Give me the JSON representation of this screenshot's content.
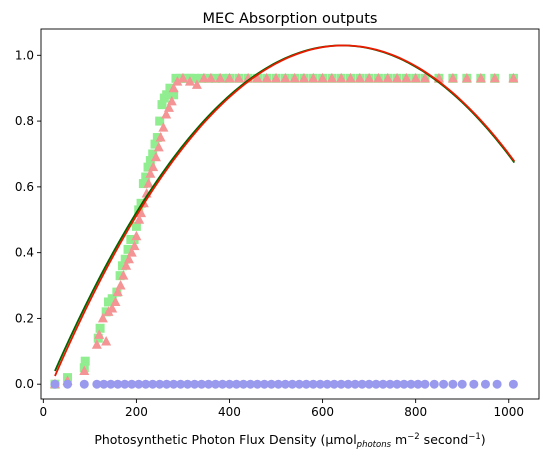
{
  "chart_data": {
    "type": "scatter",
    "title": "MEC Absorption outputs",
    "xlabel": {
      "prefix": "Photosynthetic Photon Flux Density (µmol",
      "sub": "photons",
      "mid1": " m",
      "sup1": "−2",
      "mid2": " second",
      "sup2": "−1",
      "suffix": ")"
    },
    "ylabel": "",
    "xlim": [
      -5,
      1065
    ],
    "ylim": [
      -0.045,
      1.08
    ],
    "xticks": [
      0,
      200,
      400,
      600,
      800,
      1000
    ],
    "xtick_labels": [
      "0",
      "200",
      "400",
      "600",
      "800",
      "1000"
    ],
    "yticks": [
      0.0,
      0.2,
      0.4,
      0.6,
      0.8,
      1.0
    ],
    "ytick_labels": [
      "0.0",
      "0.2",
      "0.4",
      "0.6",
      "0.8",
      "1.0"
    ],
    "grid": false,
    "series": [
      {
        "marker": "square",
        "color": "#90ee90",
        "points": [
          [
            25,
            0.0
          ],
          [
            52,
            0.02
          ],
          [
            88,
            0.05
          ],
          [
            90,
            0.07
          ],
          [
            118,
            0.14
          ],
          [
            122,
            0.17
          ],
          [
            135,
            0.22
          ],
          [
            140,
            0.25
          ],
          [
            148,
            0.26
          ],
          [
            158,
            0.28
          ],
          [
            165,
            0.33
          ],
          [
            170,
            0.36
          ],
          [
            176,
            0.38
          ],
          [
            182,
            0.41
          ],
          [
            188,
            0.44
          ],
          [
            195,
            0.44
          ],
          [
            200,
            0.48
          ],
          [
            205,
            0.53
          ],
          [
            210,
            0.55
          ],
          [
            215,
            0.61
          ],
          [
            220,
            0.63
          ],
          [
            225,
            0.66
          ],
          [
            230,
            0.68
          ],
          [
            235,
            0.7
          ],
          [
            240,
            0.73
          ],
          [
            245,
            0.75
          ],
          [
            250,
            0.8
          ],
          [
            255,
            0.85
          ],
          [
            260,
            0.87
          ],
          [
            265,
            0.88
          ],
          [
            272,
            0.9
          ],
          [
            280,
            0.88
          ],
          [
            285,
            0.93
          ],
          [
            295,
            0.93
          ],
          [
            305,
            0.93
          ],
          [
            315,
            0.93
          ],
          [
            325,
            0.93
          ],
          [
            340,
            0.93
          ],
          [
            355,
            0.93
          ],
          [
            370,
            0.93
          ],
          [
            385,
            0.93
          ],
          [
            400,
            0.93
          ],
          [
            420,
            0.93
          ],
          [
            440,
            0.93
          ],
          [
            460,
            0.93
          ],
          [
            480,
            0.93
          ],
          [
            500,
            0.93
          ],
          [
            520,
            0.93
          ],
          [
            540,
            0.93
          ],
          [
            560,
            0.93
          ],
          [
            580,
            0.93
          ],
          [
            600,
            0.93
          ],
          [
            620,
            0.93
          ],
          [
            640,
            0.93
          ],
          [
            660,
            0.93
          ],
          [
            680,
            0.93
          ],
          [
            700,
            0.93
          ],
          [
            720,
            0.93
          ],
          [
            740,
            0.93
          ],
          [
            760,
            0.93
          ],
          [
            780,
            0.93
          ],
          [
            800,
            0.93
          ],
          [
            820,
            0.93
          ],
          [
            850,
            0.93
          ],
          [
            880,
            0.93
          ],
          [
            910,
            0.93
          ],
          [
            940,
            0.93
          ],
          [
            970,
            0.93
          ],
          [
            1010,
            0.93
          ]
        ]
      },
      {
        "marker": "triangle",
        "color": "#f49494",
        "points": [
          [
            25,
            0.0
          ],
          [
            52,
            0.01
          ],
          [
            88,
            0.04
          ],
          [
            115,
            0.12
          ],
          [
            120,
            0.15
          ],
          [
            128,
            0.2
          ],
          [
            135,
            0.13
          ],
          [
            140,
            0.22
          ],
          [
            148,
            0.23
          ],
          [
            155,
            0.25
          ],
          [
            160,
            0.28
          ],
          [
            166,
            0.3
          ],
          [
            172,
            0.33
          ],
          [
            178,
            0.36
          ],
          [
            184,
            0.38
          ],
          [
            190,
            0.4
          ],
          [
            196,
            0.42
          ],
          [
            200,
            0.45
          ],
          [
            206,
            0.5
          ],
          [
            210,
            0.52
          ],
          [
            216,
            0.55
          ],
          [
            222,
            0.58
          ],
          [
            226,
            0.61
          ],
          [
            230,
            0.64
          ],
          [
            236,
            0.66
          ],
          [
            242,
            0.69
          ],
          [
            248,
            0.72
          ],
          [
            252,
            0.75
          ],
          [
            258,
            0.78
          ],
          [
            264,
            0.82
          ],
          [
            270,
            0.84
          ],
          [
            276,
            0.86
          ],
          [
            280,
            0.9
          ],
          [
            288,
            0.92
          ],
          [
            300,
            0.93
          ],
          [
            315,
            0.92
          ],
          [
            330,
            0.91
          ],
          [
            345,
            0.93
          ],
          [
            360,
            0.93
          ],
          [
            380,
            0.93
          ],
          [
            400,
            0.93
          ],
          [
            420,
            0.93
          ],
          [
            440,
            0.93
          ],
          [
            460,
            0.93
          ],
          [
            480,
            0.93
          ],
          [
            500,
            0.93
          ],
          [
            520,
            0.93
          ],
          [
            540,
            0.93
          ],
          [
            560,
            0.93
          ],
          [
            580,
            0.93
          ],
          [
            600,
            0.93
          ],
          [
            620,
            0.93
          ],
          [
            640,
            0.93
          ],
          [
            660,
            0.93
          ],
          [
            680,
            0.93
          ],
          [
            700,
            0.93
          ],
          [
            720,
            0.93
          ],
          [
            740,
            0.93
          ],
          [
            760,
            0.93
          ],
          [
            780,
            0.93
          ],
          [
            800,
            0.93
          ],
          [
            820,
            0.93
          ],
          [
            850,
            0.93
          ],
          [
            880,
            0.93
          ],
          [
            910,
            0.93
          ],
          [
            940,
            0.93
          ],
          [
            970,
            0.93
          ],
          [
            1010,
            0.93
          ]
        ]
      },
      {
        "marker": "circle",
        "color": "#9999ee",
        "points": [
          [
            25,
            0.0
          ],
          [
            52,
            0.0
          ],
          [
            88,
            0.0
          ],
          [
            115,
            0.0
          ],
          [
            130,
            0.0
          ],
          [
            145,
            0.0
          ],
          [
            160,
            0.0
          ],
          [
            175,
            0.0
          ],
          [
            190,
            0.0
          ],
          [
            205,
            0.0
          ],
          [
            220,
            0.0
          ],
          [
            235,
            0.0
          ],
          [
            250,
            0.0
          ],
          [
            265,
            0.0
          ],
          [
            280,
            0.0
          ],
          [
            295,
            0.0
          ],
          [
            310,
            0.0
          ],
          [
            325,
            0.0
          ],
          [
            340,
            0.0
          ],
          [
            355,
            0.0
          ],
          [
            370,
            0.0
          ],
          [
            385,
            0.0
          ],
          [
            400,
            0.0
          ],
          [
            415,
            0.0
          ],
          [
            430,
            0.0
          ],
          [
            445,
            0.0
          ],
          [
            460,
            0.0
          ],
          [
            475,
            0.0
          ],
          [
            490,
            0.0
          ],
          [
            505,
            0.0
          ],
          [
            520,
            0.0
          ],
          [
            535,
            0.0
          ],
          [
            550,
            0.0
          ],
          [
            565,
            0.0
          ],
          [
            580,
            0.0
          ],
          [
            595,
            0.0
          ],
          [
            610,
            0.0
          ],
          [
            625,
            0.0
          ],
          [
            640,
            0.0
          ],
          [
            655,
            0.0
          ],
          [
            670,
            0.0
          ],
          [
            685,
            0.0
          ],
          [
            700,
            0.0
          ],
          [
            715,
            0.0
          ],
          [
            730,
            0.0
          ],
          [
            745,
            0.0
          ],
          [
            760,
            0.0
          ],
          [
            775,
            0.0
          ],
          [
            790,
            0.0
          ],
          [
            805,
            0.0
          ],
          [
            820,
            0.0
          ],
          [
            840,
            0.0
          ],
          [
            860,
            0.0
          ],
          [
            880,
            0.0
          ],
          [
            900,
            0.0
          ],
          [
            925,
            0.0
          ],
          [
            950,
            0.0
          ],
          [
            975,
            0.0
          ],
          [
            1010,
            0.0
          ]
        ]
      },
      {
        "type": "line",
        "color": "#006400",
        "quadratic": {
          "x0": 25,
          "y0": 0.04,
          "vertex_x": 642,
          "vertex_y": 1.03
        },
        "x_range": [
          25,
          1012
        ]
      },
      {
        "type": "line",
        "color": "#e81a00",
        "quadratic": {
          "x0": 25,
          "y0": 0.025,
          "vertex_x": 645,
          "vertex_y": 1.03
        },
        "x_range": [
          25,
          1012
        ]
      }
    ]
  }
}
